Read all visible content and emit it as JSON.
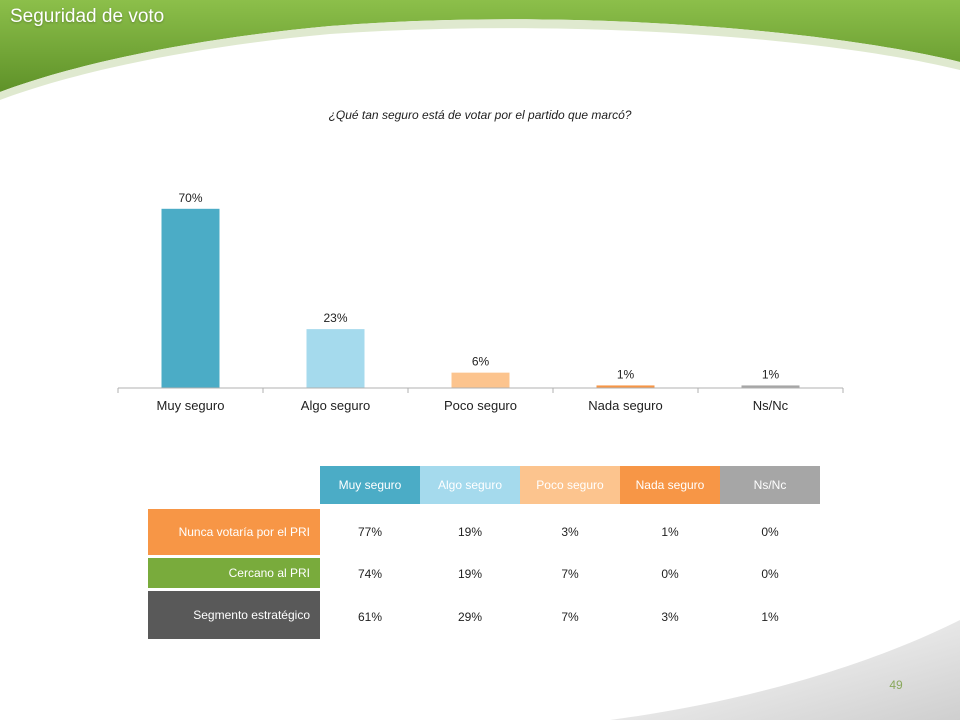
{
  "slide_title": "Seguridad de voto",
  "question": "¿Qué tan seguro está de votar por el partido que marcó?",
  "page_number": "49",
  "colors": {
    "green_band": "#79ab3c",
    "bar_muy_seguro": "#4bacc6",
    "bar_algo_seguro": "#a5daed",
    "bar_poco_seguro": "#fcc48e",
    "bar_nada_seguro": "#f79646",
    "bar_nsnc": "#a6a6a6",
    "row_nunca": "#f79646",
    "row_cercano": "#79ab3c",
    "row_segmento": "#595959"
  },
  "chart_data": {
    "type": "bar",
    "categories": [
      "Muy seguro",
      "Algo seguro",
      "Poco seguro",
      "Nada seguro",
      "Ns/Nc"
    ],
    "values": [
      70,
      23,
      6,
      1,
      1
    ],
    "data_labels": [
      "70%",
      "23%",
      "6%",
      "1%",
      "1%"
    ],
    "ylim": [
      0,
      75
    ],
    "grid": false,
    "legend": "none"
  },
  "table": {
    "columns": [
      "Muy seguro",
      "Algo seguro",
      "Poco seguro",
      "Nada seguro",
      "Ns/Nc"
    ],
    "rows": [
      {
        "label": "Nunca votaría por el PRI",
        "values": [
          "77%",
          "19%",
          "3%",
          "1%",
          "0%"
        ]
      },
      {
        "label": "Cercano al PRI",
        "values": [
          "74%",
          "19%",
          "7%",
          "0%",
          "0%"
        ]
      },
      {
        "label": "Segmento estratégico",
        "values": [
          "61%",
          "29%",
          "7%",
          "3%",
          "1%"
        ]
      }
    ]
  }
}
